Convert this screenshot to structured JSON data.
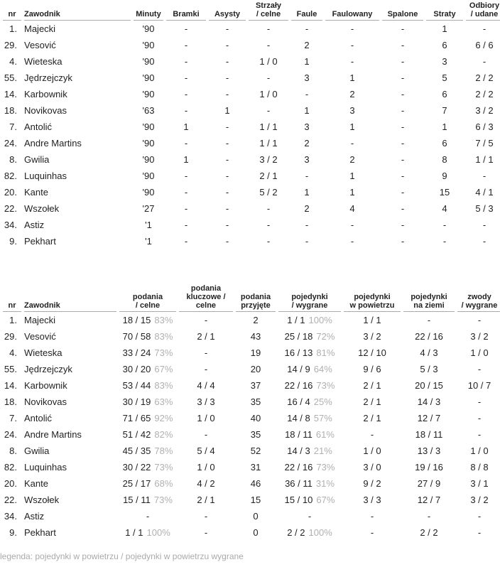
{
  "table1": {
    "columns": [
      [
        "nr"
      ],
      [
        "Zawodnik"
      ],
      [
        "Minuty"
      ],
      [
        "Bramki"
      ],
      [
        "Asysty"
      ],
      [
        "Strzały",
        "/ celne"
      ],
      [
        "Faule"
      ],
      [
        "Faulowany"
      ],
      [
        "Spalone"
      ],
      [
        "Straty"
      ],
      [
        "Odbiory",
        "/ udane"
      ]
    ],
    "rows": [
      {
        "nr": "1.",
        "name": "Majecki",
        "cells": [
          "'90",
          "-",
          "-",
          "-",
          "-",
          "-",
          "-",
          "1",
          "-"
        ]
      },
      {
        "nr": "29.",
        "name": "Vesović",
        "cells": [
          "'90",
          "-",
          "-",
          "-",
          "2",
          "-",
          "-",
          "6",
          "6 / 6"
        ]
      },
      {
        "nr": "4.",
        "name": "Wieteska",
        "cells": [
          "'90",
          "-",
          "-",
          "1 / 0",
          "1",
          "-",
          "-",
          "3",
          "-"
        ]
      },
      {
        "nr": "55.",
        "name": "Jędrzejczyk",
        "cells": [
          "'90",
          "-",
          "-",
          "-",
          "3",
          "1",
          "-",
          "5",
          "2 / 2"
        ]
      },
      {
        "nr": "14.",
        "name": "Karbownik",
        "cells": [
          "'90",
          "-",
          "-",
          "1 / 0",
          "-",
          "2",
          "-",
          "6",
          "2 / 2"
        ]
      },
      {
        "nr": "18.",
        "name": "Novikovas",
        "cells": [
          "'63",
          "-",
          "1",
          "-",
          "1",
          "3",
          "-",
          "7",
          "3 / 2"
        ]
      },
      {
        "nr": "7.",
        "name": "Antolić",
        "cells": [
          "'90",
          "1",
          "-",
          "1 / 1",
          "3",
          "1",
          "-",
          "1",
          "6 / 3"
        ]
      },
      {
        "nr": "24.",
        "name": "Andre Martins",
        "cells": [
          "'90",
          "-",
          "-",
          "1 / 1",
          "2",
          "-",
          "-",
          "6",
          "7 / 5"
        ]
      },
      {
        "nr": "8.",
        "name": "Gwilia",
        "cells": [
          "'90",
          "1",
          "-",
          "3 / 2",
          "3",
          "2",
          "-",
          "8",
          "1 / 1"
        ]
      },
      {
        "nr": "82.",
        "name": "Luquinhas",
        "cells": [
          "'90",
          "-",
          "-",
          "2 / 1",
          "-",
          "1",
          "-",
          "9",
          "-"
        ]
      },
      {
        "nr": "20.",
        "name": "Kante",
        "cells": [
          "'90",
          "-",
          "-",
          "5 / 2",
          "1",
          "1",
          "-",
          "15",
          "4 / 1"
        ]
      },
      {
        "nr": "22.",
        "name": "Wszołek",
        "cells": [
          "'27",
          "-",
          "-",
          "-",
          "2",
          "4",
          "-",
          "4",
          "5 / 3"
        ]
      },
      {
        "nr": "34.",
        "name": "Astiz",
        "cells": [
          "'1",
          "-",
          "-",
          "-",
          "-",
          "-",
          "-",
          "-",
          "-"
        ]
      },
      {
        "nr": "9.",
        "name": "Pekhart",
        "cells": [
          "'1",
          "-",
          "-",
          "-",
          "-",
          "-",
          "-",
          "-",
          "-"
        ]
      }
    ]
  },
  "table2": {
    "columns": [
      [
        "nr"
      ],
      [
        "Zawodnik"
      ],
      [
        "podania",
        "/ celne"
      ],
      [
        "podania",
        "kluczowe /",
        "celne"
      ],
      [
        "podania",
        "przyjęte"
      ],
      [
        "pojedynki",
        "/ wygrane"
      ],
      [
        "pojedynki",
        "w powietrzu"
      ],
      [
        "pojedynki",
        "na ziemi"
      ],
      [
        "zwody",
        "/ wygrane"
      ]
    ],
    "rows": [
      {
        "nr": "1.",
        "name": "Majecki",
        "cells": [
          [
            "18 / 15",
            "83%"
          ],
          "-",
          "2",
          [
            "1 / 1",
            "100%"
          ],
          "1 / 1",
          "-",
          "-"
        ]
      },
      {
        "nr": "29.",
        "name": "Vesović",
        "cells": [
          [
            "70 / 58",
            "83%"
          ],
          "2 / 1",
          "43",
          [
            "25 / 18",
            "72%"
          ],
          "3 / 2",
          "22 / 16",
          "3 / 2"
        ]
      },
      {
        "nr": "4.",
        "name": "Wieteska",
        "cells": [
          [
            "33 / 24",
            "73%"
          ],
          "-",
          "19",
          [
            "16 / 13",
            "81%"
          ],
          "12 / 10",
          "4 / 3",
          "1 / 0"
        ]
      },
      {
        "nr": "55.",
        "name": "Jędrzejczyk",
        "cells": [
          [
            "30 / 20",
            "67%"
          ],
          "-",
          "20",
          [
            "14 / 9",
            "64%"
          ],
          "9 / 6",
          "5 / 3",
          "-"
        ]
      },
      {
        "nr": "14.",
        "name": "Karbownik",
        "cells": [
          [
            "53 / 44",
            "83%"
          ],
          "4 / 4",
          "37",
          [
            "22 / 16",
            "73%"
          ],
          "2 / 1",
          "20 / 15",
          "10 / 7"
        ]
      },
      {
        "nr": "18.",
        "name": "Novikovas",
        "cells": [
          [
            "30 / 19",
            "63%"
          ],
          "3 / 3",
          "35",
          [
            "16 / 4",
            "25%"
          ],
          "2 / 1",
          "14 / 3",
          "-"
        ]
      },
      {
        "nr": "7.",
        "name": "Antolić",
        "cells": [
          [
            "71 / 65",
            "92%"
          ],
          "1 / 0",
          "40",
          [
            "14 / 8",
            "57%"
          ],
          "2 / 1",
          "12 / 7",
          "-"
        ]
      },
      {
        "nr": "24.",
        "name": "Andre Martins",
        "cells": [
          [
            "51 / 42",
            "82%"
          ],
          "-",
          "35",
          [
            "18 / 11",
            "61%"
          ],
          "-",
          "18 / 11",
          "-"
        ]
      },
      {
        "nr": "8.",
        "name": "Gwilia",
        "cells": [
          [
            "45 / 35",
            "78%"
          ],
          "5 / 4",
          "52",
          [
            "14 / 3",
            "21%"
          ],
          "1 / 0",
          "13 / 3",
          "1 / 0"
        ]
      },
      {
        "nr": "82.",
        "name": "Luquinhas",
        "cells": [
          [
            "30 / 22",
            "73%"
          ],
          "1 / 0",
          "31",
          [
            "22 / 16",
            "73%"
          ],
          "3 / 0",
          "19 / 16",
          "8 / 8"
        ]
      },
      {
        "nr": "20.",
        "name": "Kante",
        "cells": [
          [
            "25 / 17",
            "68%"
          ],
          "4 / 2",
          "46",
          [
            "36 / 11",
            "31%"
          ],
          "9 / 2",
          "27 / 9",
          "3 / 1"
        ]
      },
      {
        "nr": "22.",
        "name": "Wszołek",
        "cells": [
          [
            "15 / 11",
            "73%"
          ],
          "2 / 1",
          "15",
          [
            "15 / 10",
            "67%"
          ],
          "3 / 3",
          "12 / 7",
          "3 / 2"
        ]
      },
      {
        "nr": "34.",
        "name": "Astiz",
        "cells": [
          "-",
          "-",
          "0",
          "-",
          "-",
          "-",
          "-"
        ]
      },
      {
        "nr": "9.",
        "name": "Pekhart",
        "cells": [
          [
            "1 / 1",
            "100%"
          ],
          "-",
          "0",
          [
            "2 / 2",
            "100%"
          ],
          "-",
          "2 / 2",
          "-"
        ]
      }
    ]
  },
  "legend": "legenda: pojedynki w powietrzu / pojedynki w powietrzu wygrane"
}
